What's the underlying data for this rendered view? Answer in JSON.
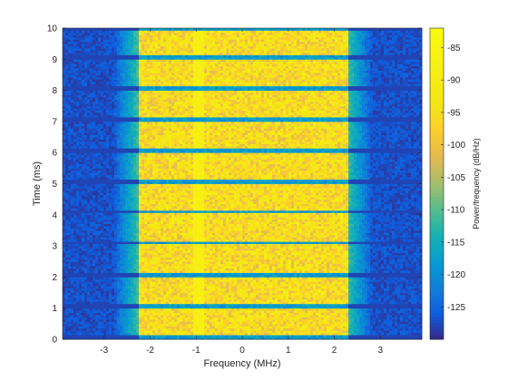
{
  "chart_data": {
    "type": "heatmap",
    "title": "",
    "xlabel": "Frequency (MHz)",
    "ylabel": "Time (ms)",
    "xlim": [
      -3.9,
      3.9
    ],
    "ylim": [
      0,
      10
    ],
    "x_ticks": [
      -3,
      -2,
      -1,
      0,
      1,
      2,
      3
    ],
    "x_tick_labels": [
      "-3",
      "-2",
      "-1",
      "0",
      "1",
      "2",
      "3"
    ],
    "y_ticks": [
      0,
      1,
      2,
      3,
      4,
      5,
      6,
      7,
      8,
      9,
      10
    ],
    "y_tick_labels": [
      "0",
      "1",
      "2",
      "3",
      "4",
      "5",
      "6",
      "7",
      "8",
      "9",
      "10"
    ],
    "colorbar": {
      "label": "Power/frequency (dB/Hz)",
      "range": [
        -130,
        -82
      ],
      "ticks": [
        -125,
        -120,
        -115,
        -110,
        -105,
        -100,
        -95,
        -90,
        -85
      ],
      "tick_labels": [
        "-125",
        "-120",
        "-115",
        "-110",
        "-105",
        "-100",
        "-95",
        "-90",
        "-85"
      ],
      "colormap": "parula"
    },
    "signal": {
      "occupied_band_mhz": [
        -2.25,
        2.28
      ],
      "band_level_db": -95,
      "noise_floor_db": -127,
      "spur_frequency_mhz": -0.95,
      "spur_level_db": -88,
      "burst_gap_times_ms": [
        0.05,
        1.05,
        2.05,
        3.1,
        4.1,
        5.05,
        6.05,
        7.05,
        8.05,
        9.05,
        10.0
      ]
    },
    "grid": false,
    "colors": {
      "background": "#ffffff",
      "axis": "#262626"
    }
  }
}
